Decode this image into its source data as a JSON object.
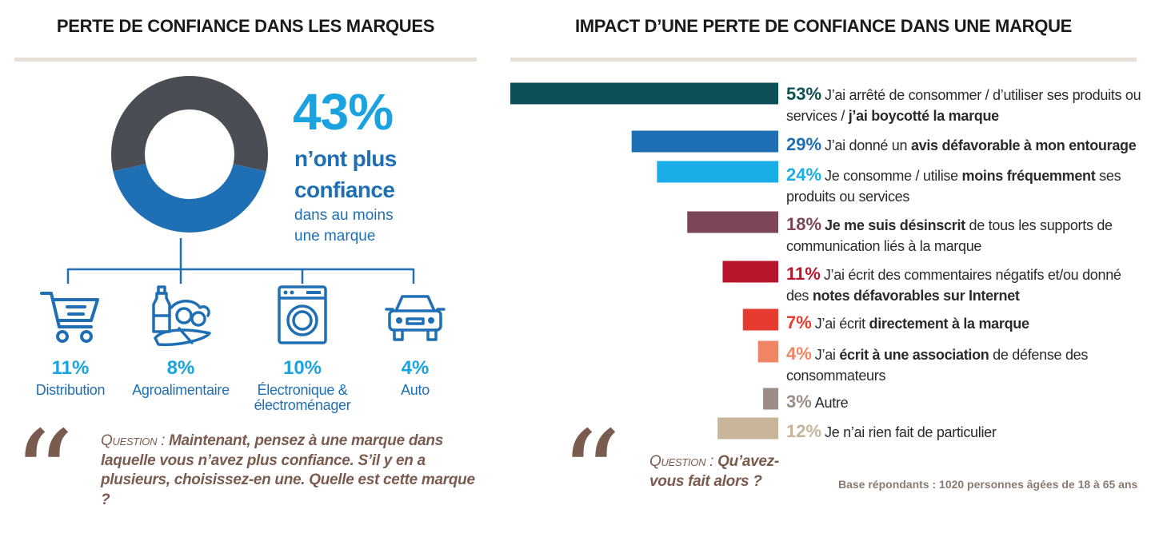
{
  "left": {
    "title": "PERTE DE CONFIANCE DANS LES MARQUES",
    "headline": {
      "percent": "43%",
      "line1": "n’ont plus",
      "line2": "confiance",
      "line3": "dans au moins",
      "line4": "une marque"
    },
    "categories": [
      {
        "icon": "shopping-cart-icon",
        "percent": "11%",
        "label": "Distribution"
      },
      {
        "icon": "groceries-icon",
        "percent": "8%",
        "label": "Agroalimentaire"
      },
      {
        "icon": "washing-machine-icon",
        "percent": "10%",
        "label": "Électronique &\nélectroménager"
      },
      {
        "icon": "car-icon",
        "percent": "4%",
        "label": "Auto"
      }
    ],
    "question_label": "Question :",
    "question_text": "Maintenant, pensez à une marque dans laquelle vous n’avez plus confiance. S’il y en a plusieurs, choisissez-en une. Quelle est cette marque ?"
  },
  "right": {
    "title": "IMPACT D’UNE PERTE DE CONFIANCE DANS UNE MARQUE",
    "rows": [
      {
        "percent": "53%",
        "parts": [
          {
            "t": "J’ai arrêté de consommer / d’utiliser ses produits ou services / "
          },
          {
            "t": "j’ai boycotté la marque",
            "b": true
          }
        ]
      },
      {
        "percent": "29%",
        "parts": [
          {
            "t": "J’ai donné un "
          },
          {
            "t": "avis défavorable à  mon entourage",
            "b": true
          }
        ]
      },
      {
        "percent": "24%",
        "parts": [
          {
            "t": "Je consomme / utilise "
          },
          {
            "t": "moins fréquemment",
            "b": true
          },
          {
            "t": " ses produits ou services"
          }
        ]
      },
      {
        "percent": "18%",
        "parts": [
          {
            "t": "Je me suis désinscrit",
            "b": true
          },
          {
            "t": " de tous les supports de communication liés à la marque"
          }
        ]
      },
      {
        "percent": "11%",
        "parts": [
          {
            "t": "J’ai écrit des commentaires négatifs et/ou donné des "
          },
          {
            "t": "notes défavorables sur Internet",
            "b": true
          }
        ]
      },
      {
        "percent": "7%",
        "parts": [
          {
            "t": "J’ai écrit "
          },
          {
            "t": "directement à la marque",
            "b": true
          }
        ]
      },
      {
        "percent": "4%",
        "parts": [
          {
            "t": "J’ai "
          },
          {
            "t": "écrit à une association",
            "b": true
          },
          {
            "t": " de défense des consommateurs"
          }
        ]
      },
      {
        "percent": "3%",
        "parts": [
          {
            "t": "Autre"
          }
        ]
      },
      {
        "percent": "12%",
        "parts": [
          {
            "t": "Je n’ai rien fait de particulier"
          }
        ]
      }
    ],
    "question_label": "Question :",
    "question_text": "Qu’avez-vous fait alors ?",
    "base_note": "Base répondants : 1020 personnes âgées de 18 à 65 ans"
  },
  "colors": {
    "dark_grey": "#4a4e54",
    "blue": "#1f6fb5",
    "light_blue": "#1aa3e0",
    "brown": "#7a5b4f",
    "rule": "#e6e0d8"
  },
  "chart_data": [
    {
      "type": "pie",
      "labels": [
        "n’ont plus confiance",
        ""
      ],
      "values": [
        43,
        57
      ],
      "colors": [
        "#1f6fb5",
        "#4a4e54"
      ]
    },
    {
      "type": "bar",
      "orientation": "horizontal",
      "categories": [
        "J’ai arrêté de consommer / d’utiliser ses produits ou services / j’ai boycotté la marque",
        "J’ai donné un avis défavorable à  mon entourage",
        "Je consomme / utilise moins fréquemment ses produits ou services",
        "Je me suis désinscrit de tous les supports de communication liés à la marque",
        "J’ai écrit des commentaires négatifs et/ou donné des notes défavorables sur Internet",
        "J’ai écrit directement à la marque",
        "J’ai écrit à une association de défense des consommateurs",
        "Autre",
        "Je n’ai rien fait de particulier"
      ],
      "values": [
        53,
        29,
        24,
        18,
        11,
        7,
        4,
        3,
        12
      ],
      "colors": [
        "#0c4f55",
        "#1f6fb5",
        "#1aaee8",
        "#7d4656",
        "#b8172b",
        "#e63b2e",
        "#ef8563",
        "#9a8c86",
        "#c7b49a"
      ],
      "unit": "%"
    }
  ]
}
